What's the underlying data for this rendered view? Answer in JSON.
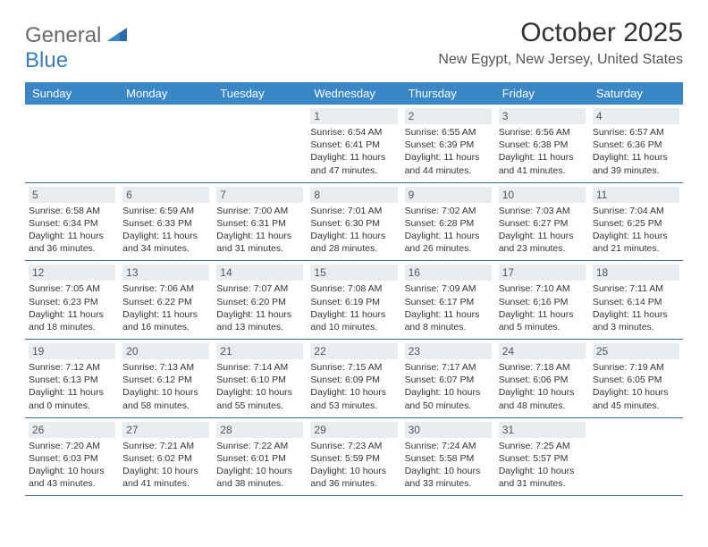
{
  "colors": {
    "header_bg": "#3a87c7",
    "header_text": "#ffffff",
    "daynum_bg": "#e8edf2",
    "daynum_text": "#555555",
    "row_border": "#3a6a9a",
    "body_text": "#333333",
    "logo_gray": "#6a6a6a",
    "logo_blue": "#3a7ebf",
    "background": "#ffffff"
  },
  "logo": {
    "part1": "General",
    "part2": "Blue"
  },
  "title": "October 2025",
  "location": "New Egypt, New Jersey, United States",
  "day_headers": [
    "Sunday",
    "Monday",
    "Tuesday",
    "Wednesday",
    "Thursday",
    "Friday",
    "Saturday"
  ],
  "weeks": [
    [
      null,
      null,
      null,
      {
        "num": "1",
        "sunrise": "Sunrise: 6:54 AM",
        "sunset": "Sunset: 6:41 PM",
        "daylight": "Daylight: 11 hours and 47 minutes."
      },
      {
        "num": "2",
        "sunrise": "Sunrise: 6:55 AM",
        "sunset": "Sunset: 6:39 PM",
        "daylight": "Daylight: 11 hours and 44 minutes."
      },
      {
        "num": "3",
        "sunrise": "Sunrise: 6:56 AM",
        "sunset": "Sunset: 6:38 PM",
        "daylight": "Daylight: 11 hours and 41 minutes."
      },
      {
        "num": "4",
        "sunrise": "Sunrise: 6:57 AM",
        "sunset": "Sunset: 6:36 PM",
        "daylight": "Daylight: 11 hours and 39 minutes."
      }
    ],
    [
      {
        "num": "5",
        "sunrise": "Sunrise: 6:58 AM",
        "sunset": "Sunset: 6:34 PM",
        "daylight": "Daylight: 11 hours and 36 minutes."
      },
      {
        "num": "6",
        "sunrise": "Sunrise: 6:59 AM",
        "sunset": "Sunset: 6:33 PM",
        "daylight": "Daylight: 11 hours and 34 minutes."
      },
      {
        "num": "7",
        "sunrise": "Sunrise: 7:00 AM",
        "sunset": "Sunset: 6:31 PM",
        "daylight": "Daylight: 11 hours and 31 minutes."
      },
      {
        "num": "8",
        "sunrise": "Sunrise: 7:01 AM",
        "sunset": "Sunset: 6:30 PM",
        "daylight": "Daylight: 11 hours and 28 minutes."
      },
      {
        "num": "9",
        "sunrise": "Sunrise: 7:02 AM",
        "sunset": "Sunset: 6:28 PM",
        "daylight": "Daylight: 11 hours and 26 minutes."
      },
      {
        "num": "10",
        "sunrise": "Sunrise: 7:03 AM",
        "sunset": "Sunset: 6:27 PM",
        "daylight": "Daylight: 11 hours and 23 minutes."
      },
      {
        "num": "11",
        "sunrise": "Sunrise: 7:04 AM",
        "sunset": "Sunset: 6:25 PM",
        "daylight": "Daylight: 11 hours and 21 minutes."
      }
    ],
    [
      {
        "num": "12",
        "sunrise": "Sunrise: 7:05 AM",
        "sunset": "Sunset: 6:23 PM",
        "daylight": "Daylight: 11 hours and 18 minutes."
      },
      {
        "num": "13",
        "sunrise": "Sunrise: 7:06 AM",
        "sunset": "Sunset: 6:22 PM",
        "daylight": "Daylight: 11 hours and 16 minutes."
      },
      {
        "num": "14",
        "sunrise": "Sunrise: 7:07 AM",
        "sunset": "Sunset: 6:20 PM",
        "daylight": "Daylight: 11 hours and 13 minutes."
      },
      {
        "num": "15",
        "sunrise": "Sunrise: 7:08 AM",
        "sunset": "Sunset: 6:19 PM",
        "daylight": "Daylight: 11 hours and 10 minutes."
      },
      {
        "num": "16",
        "sunrise": "Sunrise: 7:09 AM",
        "sunset": "Sunset: 6:17 PM",
        "daylight": "Daylight: 11 hours and 8 minutes."
      },
      {
        "num": "17",
        "sunrise": "Sunrise: 7:10 AM",
        "sunset": "Sunset: 6:16 PM",
        "daylight": "Daylight: 11 hours and 5 minutes."
      },
      {
        "num": "18",
        "sunrise": "Sunrise: 7:11 AM",
        "sunset": "Sunset: 6:14 PM",
        "daylight": "Daylight: 11 hours and 3 minutes."
      }
    ],
    [
      {
        "num": "19",
        "sunrise": "Sunrise: 7:12 AM",
        "sunset": "Sunset: 6:13 PM",
        "daylight": "Daylight: 11 hours and 0 minutes."
      },
      {
        "num": "20",
        "sunrise": "Sunrise: 7:13 AM",
        "sunset": "Sunset: 6:12 PM",
        "daylight": "Daylight: 10 hours and 58 minutes."
      },
      {
        "num": "21",
        "sunrise": "Sunrise: 7:14 AM",
        "sunset": "Sunset: 6:10 PM",
        "daylight": "Daylight: 10 hours and 55 minutes."
      },
      {
        "num": "22",
        "sunrise": "Sunrise: 7:15 AM",
        "sunset": "Sunset: 6:09 PM",
        "daylight": "Daylight: 10 hours and 53 minutes."
      },
      {
        "num": "23",
        "sunrise": "Sunrise: 7:17 AM",
        "sunset": "Sunset: 6:07 PM",
        "daylight": "Daylight: 10 hours and 50 minutes."
      },
      {
        "num": "24",
        "sunrise": "Sunrise: 7:18 AM",
        "sunset": "Sunset: 6:06 PM",
        "daylight": "Daylight: 10 hours and 48 minutes."
      },
      {
        "num": "25",
        "sunrise": "Sunrise: 7:19 AM",
        "sunset": "Sunset: 6:05 PM",
        "daylight": "Daylight: 10 hours and 45 minutes."
      }
    ],
    [
      {
        "num": "26",
        "sunrise": "Sunrise: 7:20 AM",
        "sunset": "Sunset: 6:03 PM",
        "daylight": "Daylight: 10 hours and 43 minutes."
      },
      {
        "num": "27",
        "sunrise": "Sunrise: 7:21 AM",
        "sunset": "Sunset: 6:02 PM",
        "daylight": "Daylight: 10 hours and 41 minutes."
      },
      {
        "num": "28",
        "sunrise": "Sunrise: 7:22 AM",
        "sunset": "Sunset: 6:01 PM",
        "daylight": "Daylight: 10 hours and 38 minutes."
      },
      {
        "num": "29",
        "sunrise": "Sunrise: 7:23 AM",
        "sunset": "Sunset: 5:59 PM",
        "daylight": "Daylight: 10 hours and 36 minutes."
      },
      {
        "num": "30",
        "sunrise": "Sunrise: 7:24 AM",
        "sunset": "Sunset: 5:58 PM",
        "daylight": "Daylight: 10 hours and 33 minutes."
      },
      {
        "num": "31",
        "sunrise": "Sunrise: 7:25 AM",
        "sunset": "Sunset: 5:57 PM",
        "daylight": "Daylight: 10 hours and 31 minutes."
      },
      null
    ]
  ]
}
